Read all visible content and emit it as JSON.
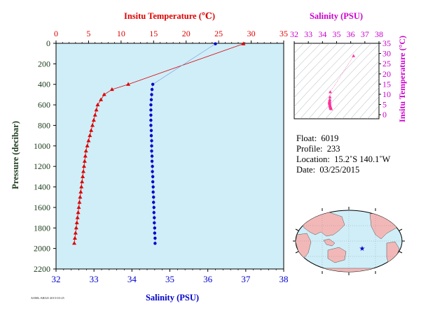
{
  "colors": {
    "temperature": "#dd0000",
    "salinity": "#0000cc",
    "ts_axis": "#cc00cc",
    "axis_green": "#1a3a1a",
    "plot_bg": "#cfeef8",
    "land": "#f2b8b8",
    "ocean": "#cfeef8",
    "ts_points": "#ff3399"
  },
  "labels": {
    "temp_axis_title": "Insitu Temperature (℃)",
    "sal_axis_title": "Salinity (PSU)",
    "pressure_axis_title": "Pressure (decibar)",
    "ts_top_title": "Salinity (PSU)",
    "ts_right_title": "Insitu Temperature (°C)",
    "footer_tiny": "AOML/ARGO 2015-03-25"
  },
  "info": {
    "float_label": "Float:",
    "float_value": "6019",
    "profile_label": "Profile:",
    "profile_value": "233",
    "location_label": "Location:",
    "location_value": "15.2˚S  140.1˚W",
    "date_label": "Date:",
    "date_value": "03/25/2015"
  },
  "chart_data": [
    {
      "type": "line",
      "title": "",
      "y_axis": {
        "label": "Pressure (decibar)",
        "range": [
          2200,
          0
        ],
        "ticks": [
          0,
          200,
          400,
          600,
          800,
          1000,
          1200,
          1400,
          1600,
          1800,
          2000,
          2200
        ]
      },
      "x_axes": {
        "temperature": {
          "label": "Insitu Temperature (℃)",
          "range": [
            0,
            35
          ],
          "ticks": [
            0,
            5,
            10,
            15,
            20,
            25,
            30,
            35
          ],
          "position": "top"
        },
        "salinity": {
          "label": "Salinity (PSU)",
          "range": [
            32,
            38
          ],
          "ticks": [
            32,
            33,
            34,
            35,
            36,
            37,
            38
          ],
          "position": "bottom"
        }
      },
      "series": [
        {
          "name": "Temperature",
          "marker": "triangle",
          "pressure": [
            5,
            400,
            450,
            500,
            550,
            600,
            650,
            700,
            750,
            800,
            850,
            900,
            950,
            1000,
            1050,
            1100,
            1150,
            1200,
            1250,
            1300,
            1350,
            1400,
            1450,
            1500,
            1550,
            1600,
            1650,
            1700,
            1750,
            1800,
            1850,
            1900,
            1950
          ],
          "values": [
            28.8,
            11.1,
            8.6,
            7.4,
            6.9,
            6.4,
            6.2,
            6.0,
            5.8,
            5.6,
            5.4,
            5.2,
            5.0,
            4.8,
            4.6,
            4.5,
            4.4,
            4.3,
            4.2,
            4.1,
            4.0,
            3.9,
            3.8,
            3.7,
            3.6,
            3.5,
            3.4,
            3.3,
            3.2,
            3.1,
            3.0,
            2.9,
            2.8
          ]
        },
        {
          "name": "Salinity",
          "marker": "circle",
          "pressure": [
            5,
            400,
            450,
            500,
            550,
            600,
            650,
            700,
            750,
            800,
            850,
            900,
            950,
            1000,
            1050,
            1100,
            1150,
            1200,
            1250,
            1300,
            1350,
            1400,
            1450,
            1500,
            1550,
            1600,
            1650,
            1700,
            1750,
            1800,
            1850,
            1900,
            1950
          ],
          "values": [
            36.2,
            34.55,
            34.53,
            34.52,
            34.51,
            34.5,
            34.5,
            34.5,
            34.5,
            34.5,
            34.51,
            34.51,
            34.52,
            34.52,
            34.52,
            34.53,
            34.53,
            34.54,
            34.54,
            34.55,
            34.55,
            34.56,
            34.56,
            34.57,
            34.57,
            34.58,
            34.58,
            34.59,
            34.59,
            34.6,
            34.6,
            34.61,
            34.61
          ]
        }
      ]
    },
    {
      "type": "scatter",
      "title": "",
      "x_axis": {
        "label": "Salinity (PSU)",
        "range": [
          32,
          38
        ],
        "ticks": [
          32,
          33,
          34,
          35,
          36,
          37,
          38
        ],
        "position": "top"
      },
      "y_axis": {
        "label": "Insitu Temperature (°C)",
        "range": [
          -2,
          35
        ],
        "ticks": [
          0,
          5,
          10,
          15,
          20,
          25,
          30,
          35
        ],
        "position": "right"
      },
      "points": {
        "salinity": [
          36.2,
          34.55,
          34.53,
          34.52,
          34.51,
          34.5,
          34.5,
          34.5,
          34.5,
          34.5,
          34.51,
          34.52,
          34.53,
          34.54,
          34.55,
          34.56,
          34.57,
          34.58,
          34.59,
          34.6,
          34.61
        ],
        "temperature": [
          28.8,
          11.1,
          8.6,
          7.4,
          6.9,
          6.4,
          6.2,
          6.0,
          5.8,
          5.6,
          5.4,
          5.0,
          4.6,
          4.3,
          4.0,
          3.8,
          3.6,
          3.4,
          3.2,
          3.0,
          2.8
        ]
      }
    },
    {
      "type": "map",
      "title": "",
      "marker": {
        "lat": -15.2,
        "lon": -140.1,
        "symbol": "star"
      }
    }
  ]
}
